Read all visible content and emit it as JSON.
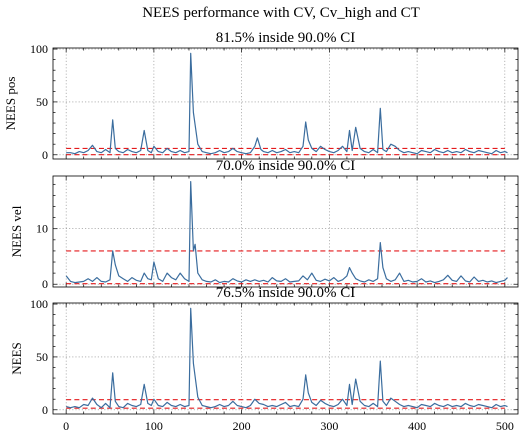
{
  "figure": {
    "suptitle": "NEES performance with CV, Cv_high and CT"
  },
  "chart_data": [
    {
      "type": "line",
      "title": "81.5% inside 90.0% CI",
      "xlabel": "",
      "ylabel": "NEES pos",
      "xlim": [
        -15,
        515
      ],
      "ylim": [
        -4,
        101
      ],
      "yticks": [
        0,
        50,
        100
      ],
      "xticks": [
        0,
        100,
        200,
        300,
        400,
        500
      ],
      "show_xticklabels": false,
      "grid": true,
      "ci_bounds": [
        0.1,
        6.0
      ],
      "series": [
        {
          "x": [
            0,
            5,
            10,
            15,
            20,
            25,
            30,
            35,
            40,
            45,
            50,
            53,
            56,
            60,
            65,
            70,
            75,
            80,
            85,
            89,
            93,
            97,
            100,
            105,
            110,
            115,
            120,
            125,
            130,
            135,
            140,
            142,
            145,
            150,
            155,
            160,
            165,
            170,
            175,
            180,
            185,
            190,
            195,
            200,
            205,
            210,
            215,
            218,
            222,
            225,
            230,
            235,
            240,
            245,
            250,
            255,
            260,
            265,
            270,
            273,
            276,
            280,
            285,
            290,
            295,
            300,
            305,
            310,
            315,
            320,
            323,
            326,
            330,
            335,
            340,
            345,
            350,
            355,
            358,
            361,
            365,
            370,
            375,
            380,
            385,
            390,
            395,
            400,
            405,
            410,
            415,
            420,
            425,
            430,
            435,
            440,
            445,
            450,
            455,
            460,
            465,
            470,
            475,
            480,
            485,
            490,
            495,
            500,
            503
          ],
          "values": [
            2,
            2,
            1,
            3,
            2,
            4,
            9,
            3,
            2,
            5,
            2,
            33,
            6,
            3,
            2,
            5,
            3,
            2,
            4,
            23,
            4,
            2,
            8,
            3,
            2,
            6,
            3,
            2,
            4,
            2,
            3,
            96,
            40,
            10,
            3,
            2,
            1,
            2,
            4,
            2,
            3,
            6,
            3,
            2,
            1,
            2,
            8,
            16,
            5,
            3,
            2,
            4,
            2,
            3,
            5,
            2,
            3,
            2,
            8,
            31,
            14,
            6,
            3,
            8,
            5,
            3,
            2,
            4,
            8,
            3,
            23,
            4,
            26,
            6,
            3,
            2,
            5,
            2,
            44,
            5,
            3,
            10,
            8,
            4,
            2,
            3,
            2,
            1,
            4,
            3,
            2,
            5,
            3,
            2,
            4,
            2,
            3,
            2,
            5,
            3,
            2,
            4,
            3,
            2,
            1,
            4,
            2,
            3,
            2
          ]
        }
      ]
    },
    {
      "type": "line",
      "title": "70.0% inside 90.0% CI",
      "xlabel": "",
      "ylabel": "NEES vel",
      "xlim": [
        -15,
        515
      ],
      "ylim": [
        -0.5,
        19.5
      ],
      "yticks": [
        0,
        10
      ],
      "xticks": [
        0,
        100,
        200,
        300,
        400,
        500
      ],
      "show_xticklabels": false,
      "grid": true,
      "ci_bounds": [
        0.1,
        6.0
      ],
      "series": [
        {
          "x": [
            0,
            5,
            10,
            15,
            20,
            25,
            30,
            35,
            40,
            45,
            50,
            53,
            56,
            60,
            65,
            70,
            75,
            80,
            85,
            89,
            93,
            97,
            100,
            105,
            110,
            115,
            120,
            125,
            130,
            135,
            140,
            142,
            145,
            147,
            150,
            155,
            160,
            165,
            170,
            175,
            180,
            185,
            190,
            195,
            200,
            205,
            210,
            215,
            220,
            225,
            230,
            235,
            240,
            245,
            250,
            255,
            260,
            265,
            270,
            275,
            280,
            285,
            290,
            295,
            300,
            305,
            310,
            315,
            320,
            323,
            326,
            330,
            335,
            340,
            345,
            350,
            355,
            358,
            361,
            365,
            370,
            375,
            380,
            385,
            390,
            395,
            400,
            405,
            410,
            415,
            420,
            425,
            430,
            435,
            440,
            445,
            450,
            455,
            460,
            465,
            470,
            475,
            480,
            485,
            490,
            495,
            500,
            503
          ],
          "values": [
            1.5,
            0.5,
            0.3,
            0.4,
            0.5,
            1.0,
            0.5,
            1.2,
            0.5,
            0.4,
            0.8,
            6.0,
            3.5,
            1.5,
            1.0,
            0.5,
            1.2,
            0.7,
            0.5,
            2.0,
            1.0,
            0.8,
            4.0,
            1.0,
            0.5,
            2.0,
            1.2,
            0.8,
            2.0,
            1.0,
            0.5,
            18.5,
            6.0,
            7.2,
            2.0,
            0.8,
            0.5,
            0.4,
            0.8,
            0.3,
            0.5,
            0.4,
            1.0,
            0.6,
            0.4,
            0.8,
            0.5,
            0.8,
            0.5,
            0.7,
            0.4,
            1.2,
            0.6,
            0.5,
            1.0,
            0.4,
            0.5,
            0.6,
            1.5,
            0.8,
            2.0,
            0.7,
            0.5,
            0.9,
            0.6,
            1.2,
            0.5,
            0.8,
            1.5,
            3.0,
            2.0,
            1.0,
            0.6,
            0.4,
            0.8,
            0.5,
            1.0,
            7.5,
            3.0,
            1.0,
            0.5,
            0.8,
            2.0,
            0.5,
            0.7,
            0.4,
            0.5,
            1.0,
            0.4,
            0.6,
            0.3,
            0.5,
            0.8,
            1.6,
            0.7,
            0.5,
            1.5,
            0.6,
            0.4,
            1.3,
            0.5,
            0.7,
            0.4,
            0.6,
            0.3,
            0.5,
            0.7,
            1.2
          ]
        }
      ]
    },
    {
      "type": "line",
      "title": "76.5% inside 90.0% CI",
      "xlabel": "",
      "ylabel": "NEES",
      "xlim": [
        -15,
        515
      ],
      "ylim": [
        -4,
        101
      ],
      "yticks": [
        0,
        50,
        100
      ],
      "xticks": [
        0,
        100,
        200,
        300,
        400,
        500
      ],
      "show_xticklabels": true,
      "grid": true,
      "ci_bounds": [
        1.5,
        9.5
      ],
      "series": [
        {
          "x": [
            0,
            5,
            10,
            15,
            20,
            25,
            30,
            35,
            40,
            45,
            50,
            53,
            56,
            60,
            65,
            70,
            75,
            80,
            85,
            89,
            93,
            97,
            100,
            105,
            110,
            115,
            120,
            125,
            130,
            135,
            140,
            142,
            145,
            150,
            155,
            160,
            165,
            170,
            175,
            180,
            185,
            190,
            195,
            200,
            205,
            210,
            215,
            220,
            225,
            230,
            235,
            240,
            245,
            250,
            255,
            260,
            265,
            270,
            273,
            276,
            280,
            285,
            290,
            295,
            300,
            305,
            310,
            315,
            320,
            323,
            326,
            330,
            335,
            340,
            345,
            350,
            355,
            358,
            361,
            365,
            370,
            375,
            380,
            385,
            390,
            395,
            400,
            405,
            410,
            415,
            420,
            425,
            430,
            435,
            440,
            445,
            450,
            455,
            460,
            465,
            470,
            475,
            480,
            485,
            490,
            495,
            500,
            503
          ],
          "values": [
            3,
            2,
            3,
            2,
            5,
            4,
            11,
            5,
            2,
            6,
            2,
            35,
            8,
            3,
            2,
            6,
            4,
            3,
            5,
            24,
            6,
            4,
            10,
            4,
            3,
            7,
            4,
            3,
            5,
            3,
            4,
            96,
            44,
            12,
            4,
            3,
            2,
            3,
            5,
            3,
            4,
            8,
            4,
            3,
            2,
            4,
            10,
            6,
            5,
            3,
            4,
            3,
            5,
            7,
            3,
            4,
            3,
            10,
            33,
            16,
            7,
            4,
            9,
            6,
            4,
            3,
            5,
            10,
            4,
            24,
            5,
            29,
            8,
            4,
            3,
            6,
            3,
            46,
            8,
            4,
            11,
            8,
            5,
            3,
            4,
            3,
            2,
            5,
            4,
            3,
            6,
            4,
            3,
            5,
            3,
            4,
            3,
            6,
            4,
            3,
            5,
            4,
            3,
            2,
            5,
            3,
            4,
            3
          ]
        }
      ]
    }
  ]
}
